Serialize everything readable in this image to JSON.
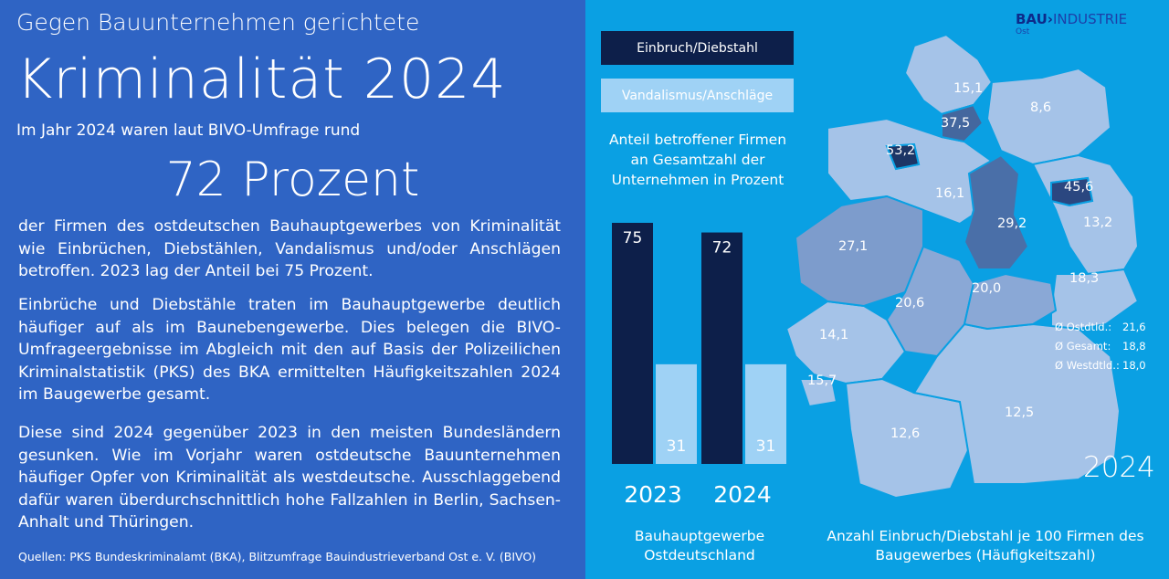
{
  "left": {
    "kicker": "Gegen Bauunternehmen gerichtete",
    "headline": "Kriminalität 2024",
    "lead": "Im Jahr 2024 waren laut BIVO-Umfrage rund",
    "big_number": "72 Prozent",
    "paragraph1": "der Firmen des ostdeutschen Bauhauptgewerbes von Kriminalität wie Einbrüchen, Diebstählen, Vandalismus und/oder Anschlägen betroffen. 2023 lag der Anteil bei 75 Prozent.",
    "paragraph2": "Einbrüche und Diebstähle traten im Bauhauptgewerbe deutlich häufiger auf als im Baunebengewerbe. Dies belegen die BIVO-Umfrageergebnisse im Abgleich mit den auf Basis der Polizeilichen Kriminalstatistik (PKS) des BKA ermittelten Häufigkeitszahlen 2024 im Baugewerbe gesamt.",
    "paragraph3": "Diese sind 2024 gegenüber 2023 in den meisten Bundesländern gesunken. Wie im Vorjahr waren ostdeutsche Bauunternehmen häufiger Opfer von Kriminalität als westdeutsche. Ausschlaggebend dafür waren überdurchschnittlich hohe Fallzahlen in Berlin,  Sachsen-Anhalt und Thüringen.",
    "sources": "Quellen: PKS Bundeskriminalamt (BKA), Blitzumfrage Bauindustrieverband Ost e. V. (BIVO)"
  },
  "logo": {
    "bau": "BAU",
    "arrow": "›",
    "industrie": "INDUSTRIE",
    "sub": "Ost"
  },
  "colors": {
    "left_bg": "#2f64c4",
    "right_bg": "#0aa0e3",
    "dark_series": "#0d1f4a",
    "light_series": "#9fd2f5"
  },
  "chart_data": [
    {
      "type": "bar",
      "title": "Anteil betroffener Firmen an Gesamtzahl der Unternehmen in Prozent",
      "categories": [
        "2023",
        "2024"
      ],
      "series": [
        {
          "name": "Einbruch/Diebstahl",
          "values": [
            75,
            72
          ],
          "color": "#0d1f4a"
        },
        {
          "name": "Vandalismus/Anschläge",
          "values": [
            31,
            31
          ],
          "color": "#9fd2f5"
        }
      ],
      "ylim": [
        0,
        75
      ],
      "legend": "top",
      "caption": "Bauhauptgewerbe Ostdeutschland"
    },
    {
      "type": "map",
      "title": "Anzahl Einbruch/Diebstahl  je 100 Firmen des Baugewerbes (Häufigkeitszahl)",
      "year": "2024",
      "values": [
        {
          "label": "15,1"
        },
        {
          "label": "37,5"
        },
        {
          "label": "8,6"
        },
        {
          "label": "53,2"
        },
        {
          "label": "16,1"
        },
        {
          "label": "45,6"
        },
        {
          "label": "29,2"
        },
        {
          "label": "13,2"
        },
        {
          "label": "27,1"
        },
        {
          "label": "18,3"
        },
        {
          "label": "20,6"
        },
        {
          "label": "20,0"
        },
        {
          "label": "14,1"
        },
        {
          "label": "15,7"
        },
        {
          "label": "12,6"
        },
        {
          "label": "12,5"
        }
      ],
      "averages": [
        {
          "label": "Ø Ostdtld.:",
          "value": "21,6"
        },
        {
          "label": "Ø Gesamt:",
          "value": "18,8"
        },
        {
          "label": "Ø Westdtld.:",
          "value": "18,0"
        }
      ]
    }
  ]
}
